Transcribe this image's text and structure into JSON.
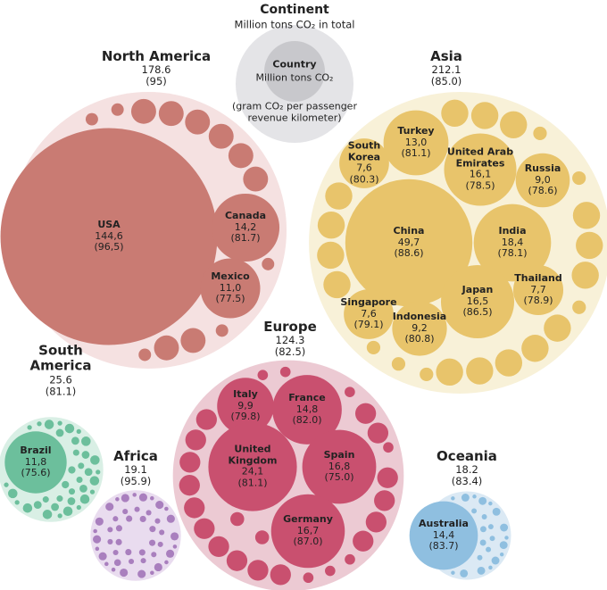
{
  "chart_data": {
    "type": "bubble-pack",
    "legend": {
      "title": "Continent",
      "subtitle": "Million tons CO₂ in total",
      "country_title": "Country",
      "country_subtitle": "Million tons CO₂",
      "note": "(gram CO₂ per passenger revenue kilometer)"
    },
    "groups": [
      {
        "name": "North America",
        "total": 178.6,
        "intensity": 95,
        "intensity_label": "(95)",
        "color": "#c97b73",
        "background": "#f5e1e1",
        "countries": [
          {
            "name": "USA",
            "value": 144.6,
            "value_label": "144,6",
            "intensity": 96.5,
            "intensity_label": "(96,5)"
          },
          {
            "name": "Canada",
            "value": 14.2,
            "value_label": "14,2",
            "intensity": 81.7,
            "intensity_label": "(81.7)"
          },
          {
            "name": "Mexico",
            "value": 11.0,
            "value_label": "11,0",
            "intensity": 77.5,
            "intensity_label": "(77.5)"
          }
        ]
      },
      {
        "name": "Asia",
        "total": 212.1,
        "intensity": 85.0,
        "intensity_label": "(85.0)",
        "color": "#e8c46b",
        "background": "#f8f1d8",
        "countries": [
          {
            "name": "China",
            "value": 49.7,
            "value_label": "49,7",
            "intensity": 88.6,
            "intensity_label": "(88.6)"
          },
          {
            "name": "India",
            "value": 18.4,
            "value_label": "18,4",
            "intensity": 78.1,
            "intensity_label": "(78.1)"
          },
          {
            "name": "Japan",
            "value": 16.5,
            "value_label": "16,5",
            "intensity": 86.5,
            "intensity_label": "(86.5)"
          },
          {
            "name": "Thailand",
            "value": 7.7,
            "value_label": "7,7",
            "intensity": 78.9,
            "intensity_label": "(78.9)"
          },
          {
            "name": "Indonesia",
            "value": 9.2,
            "value_label": "9,2",
            "intensity": 80.8,
            "intensity_label": "(80.8)"
          },
          {
            "name": "Singapore",
            "value": 7.6,
            "value_label": "7,6",
            "intensity": 79.1,
            "intensity_label": "(79.1)"
          },
          {
            "name": "South Korea",
            "value": 7.6,
            "value_label": "7,6",
            "intensity": 80.3,
            "intensity_label": "(80.3)"
          },
          {
            "name": "Turkey",
            "value": 13.0,
            "value_label": "13,0",
            "intensity": 81.1,
            "intensity_label": "(81.1)"
          },
          {
            "name": "United Arab Emirates",
            "value": 16.1,
            "value_label": "16,1",
            "intensity": 78.5,
            "intensity_label": "(78.5)"
          },
          {
            "name": "Russia",
            "value": 9.0,
            "value_label": "9,0",
            "intensity": 78.6,
            "intensity_label": "(78.6)"
          }
        ]
      },
      {
        "name": "Europe",
        "total": 124.3,
        "intensity": 82.5,
        "intensity_label": "(82.5)",
        "color": "#c9506f",
        "background": "#eccad3",
        "countries": [
          {
            "name": "Italy",
            "value": 9.9,
            "value_label": "9,9",
            "intensity": 79.8,
            "intensity_label": "(79.8)"
          },
          {
            "name": "France",
            "value": 14.8,
            "value_label": "14,8",
            "intensity": 82.0,
            "intensity_label": "(82.0)"
          },
          {
            "name": "United Kingdom",
            "value": 24.1,
            "value_label": "24,1",
            "intensity": 81.1,
            "intensity_label": "(81.1)"
          },
          {
            "name": "Spain",
            "value": 16.8,
            "value_label": "16,8",
            "intensity": 75.0,
            "intensity_label": "(75.0)"
          },
          {
            "name": "Germany",
            "value": 16.7,
            "value_label": "16,7",
            "intensity": 87.0,
            "intensity_label": "(87.0)"
          }
        ]
      },
      {
        "name": "South America",
        "total": 25.6,
        "intensity": 81.1,
        "intensity_label": "(81.1)",
        "color": "#6cbf9c",
        "background": "#d9efe5",
        "countries": [
          {
            "name": "Brazil",
            "value": 11.8,
            "value_label": "11,8",
            "intensity": 75.6,
            "intensity_label": "(75.6)"
          }
        ]
      },
      {
        "name": "Africa",
        "total": 19.1,
        "intensity": 95.9,
        "intensity_label": "(95.9)",
        "color": "#a97fbe",
        "background": "#e9dcef",
        "countries": []
      },
      {
        "name": "Oceania",
        "total": 18.2,
        "intensity": 83.4,
        "intensity_label": "(83.4)",
        "color": "#8fbfe0",
        "background": "#dbe9f4",
        "countries": [
          {
            "name": "Australia",
            "value": 14.4,
            "value_label": "14,4",
            "intensity": 83.7,
            "intensity_label": "(83.7)"
          }
        ]
      }
    ]
  }
}
